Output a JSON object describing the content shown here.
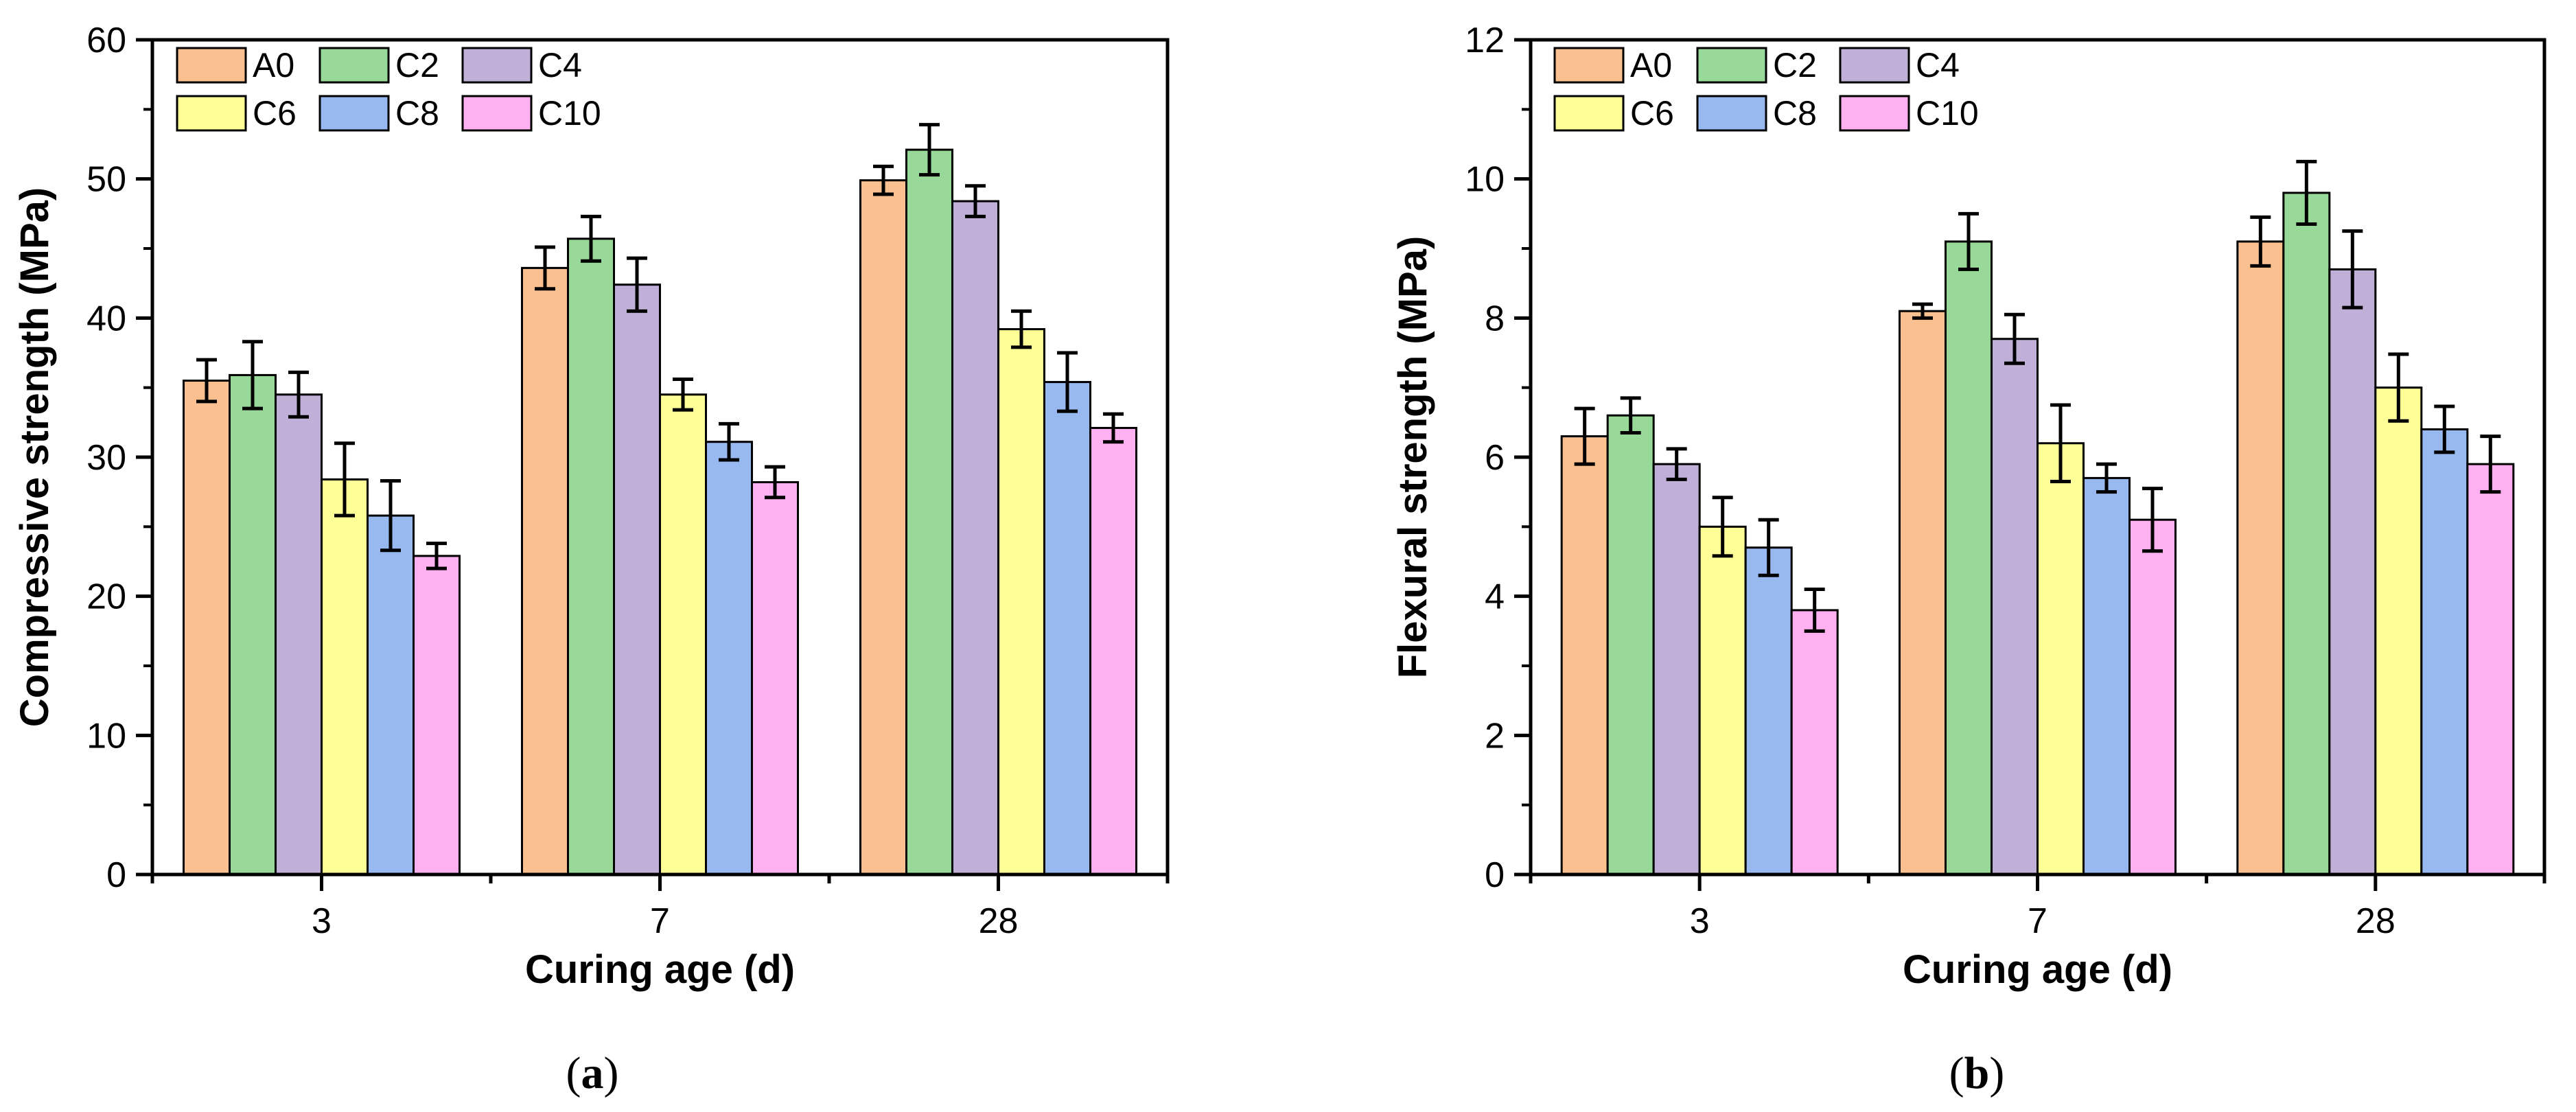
{
  "legend": {
    "entries": [
      {
        "name": "A0",
        "color": "#FAC090"
      },
      {
        "name": "C2",
        "color": "#98D898"
      },
      {
        "name": "C4",
        "color": "#C0B0D8"
      },
      {
        "name": "C6",
        "color": "#FFFF98"
      },
      {
        "name": "C8",
        "color": "#98B8F0"
      },
      {
        "name": "C10",
        "color": "#FFB0F0"
      }
    ]
  },
  "chart_data": [
    {
      "type": "bar",
      "panel_label": {
        "open": "(",
        "letter": "a",
        "close": ")"
      },
      "xlabel": "Curing age (d)",
      "ylabel": "Compressive strength (MPa)",
      "categories": [
        "3",
        "7",
        "28"
      ],
      "ylim": [
        0,
        60
      ],
      "yticks": [
        "0",
        "10",
        "20",
        "30",
        "40",
        "50",
        "60"
      ],
      "legend_position": "top-left",
      "grid": false,
      "series": [
        {
          "name": "A0",
          "values": [
            35.5,
            43.6,
            49.9
          ],
          "errors": [
            1.5,
            1.5,
            1.0
          ]
        },
        {
          "name": "C2",
          "values": [
            35.9,
            45.7,
            52.1
          ],
          "errors": [
            2.4,
            1.6,
            1.8
          ]
        },
        {
          "name": "C4",
          "values": [
            34.5,
            42.4,
            48.4
          ],
          "errors": [
            1.6,
            1.9,
            1.1
          ]
        },
        {
          "name": "C6",
          "values": [
            28.4,
            34.5,
            39.2
          ],
          "errors": [
            2.6,
            1.1,
            1.3
          ]
        },
        {
          "name": "C8",
          "values": [
            25.8,
            31.1,
            35.4
          ],
          "errors": [
            2.5,
            1.3,
            2.1
          ]
        },
        {
          "name": "C10",
          "values": [
            22.9,
            28.2,
            32.1
          ],
          "errors": [
            0.9,
            1.1,
            1.0
          ]
        }
      ]
    },
    {
      "type": "bar",
      "panel_label": {
        "open": "(",
        "letter": "b",
        "close": ")"
      },
      "xlabel": "Curing age (d)",
      "ylabel": "Flexural strength (MPa)",
      "categories": [
        "3",
        "7",
        "28"
      ],
      "ylim": [
        0,
        12
      ],
      "yticks": [
        "0",
        "2",
        "4",
        "6",
        "8",
        "10",
        "12"
      ],
      "legend_position": "top-left",
      "grid": false,
      "series": [
        {
          "name": "A0",
          "values": [
            6.3,
            8.1,
            9.1
          ],
          "errors": [
            0.4,
            0.1,
            0.35
          ]
        },
        {
          "name": "C2",
          "values": [
            6.6,
            9.1,
            9.8
          ],
          "errors": [
            0.25,
            0.4,
            0.45
          ]
        },
        {
          "name": "C4",
          "values": [
            5.9,
            7.7,
            8.7
          ],
          "errors": [
            0.22,
            0.35,
            0.55
          ]
        },
        {
          "name": "C6",
          "values": [
            5.0,
            6.2,
            7.0
          ],
          "errors": [
            0.42,
            0.55,
            0.48
          ]
        },
        {
          "name": "C8",
          "values": [
            4.7,
            5.7,
            6.4
          ],
          "errors": [
            0.4,
            0.2,
            0.33
          ]
        },
        {
          "name": "C10",
          "values": [
            3.8,
            5.1,
            5.9
          ],
          "errors": [
            0.3,
            0.45,
            0.4
          ]
        }
      ]
    }
  ]
}
